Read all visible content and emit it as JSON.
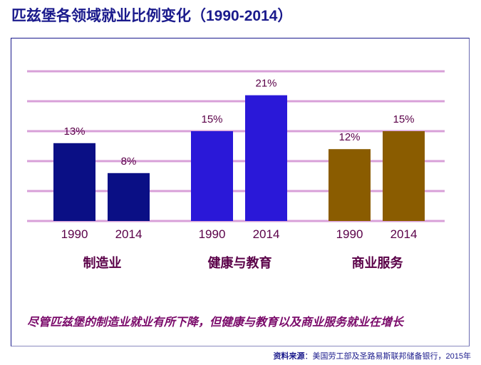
{
  "title": "匹兹堡各领域就业比例变化（1990-2014）",
  "chart_data": {
    "type": "bar",
    "title": "匹兹堡各领域就业比例变化（1990-2014）",
    "groups": [
      {
        "name": "制造业",
        "color": "#0a0f85",
        "bars": [
          {
            "year": "1990",
            "value": 13,
            "label": "13%"
          },
          {
            "year": "2014",
            "value": 8,
            "label": "8%"
          }
        ]
      },
      {
        "name": "健康与教育",
        "color": "#2a18d8",
        "bars": [
          {
            "year": "1990",
            "value": 15,
            "label": "15%"
          },
          {
            "year": "2014",
            "value": 21,
            "label": "21%"
          }
        ]
      },
      {
        "name": "商业服务",
        "color": "#8a5c00",
        "bars": [
          {
            "year": "1990",
            "value": 12,
            "label": "12%"
          },
          {
            "year": "2014",
            "value": 15,
            "label": "15%"
          }
        ]
      }
    ],
    "ylim": [
      0,
      25
    ],
    "grid_step": 5,
    "grid": true
  },
  "note": "尽管匹兹堡的制造业就业有所下降，但健康与教育以及商业服务就业在增长",
  "source_label": "资料来源",
  "source_text": "：美国劳工部及圣路易斯联邦储备银行，2015年"
}
